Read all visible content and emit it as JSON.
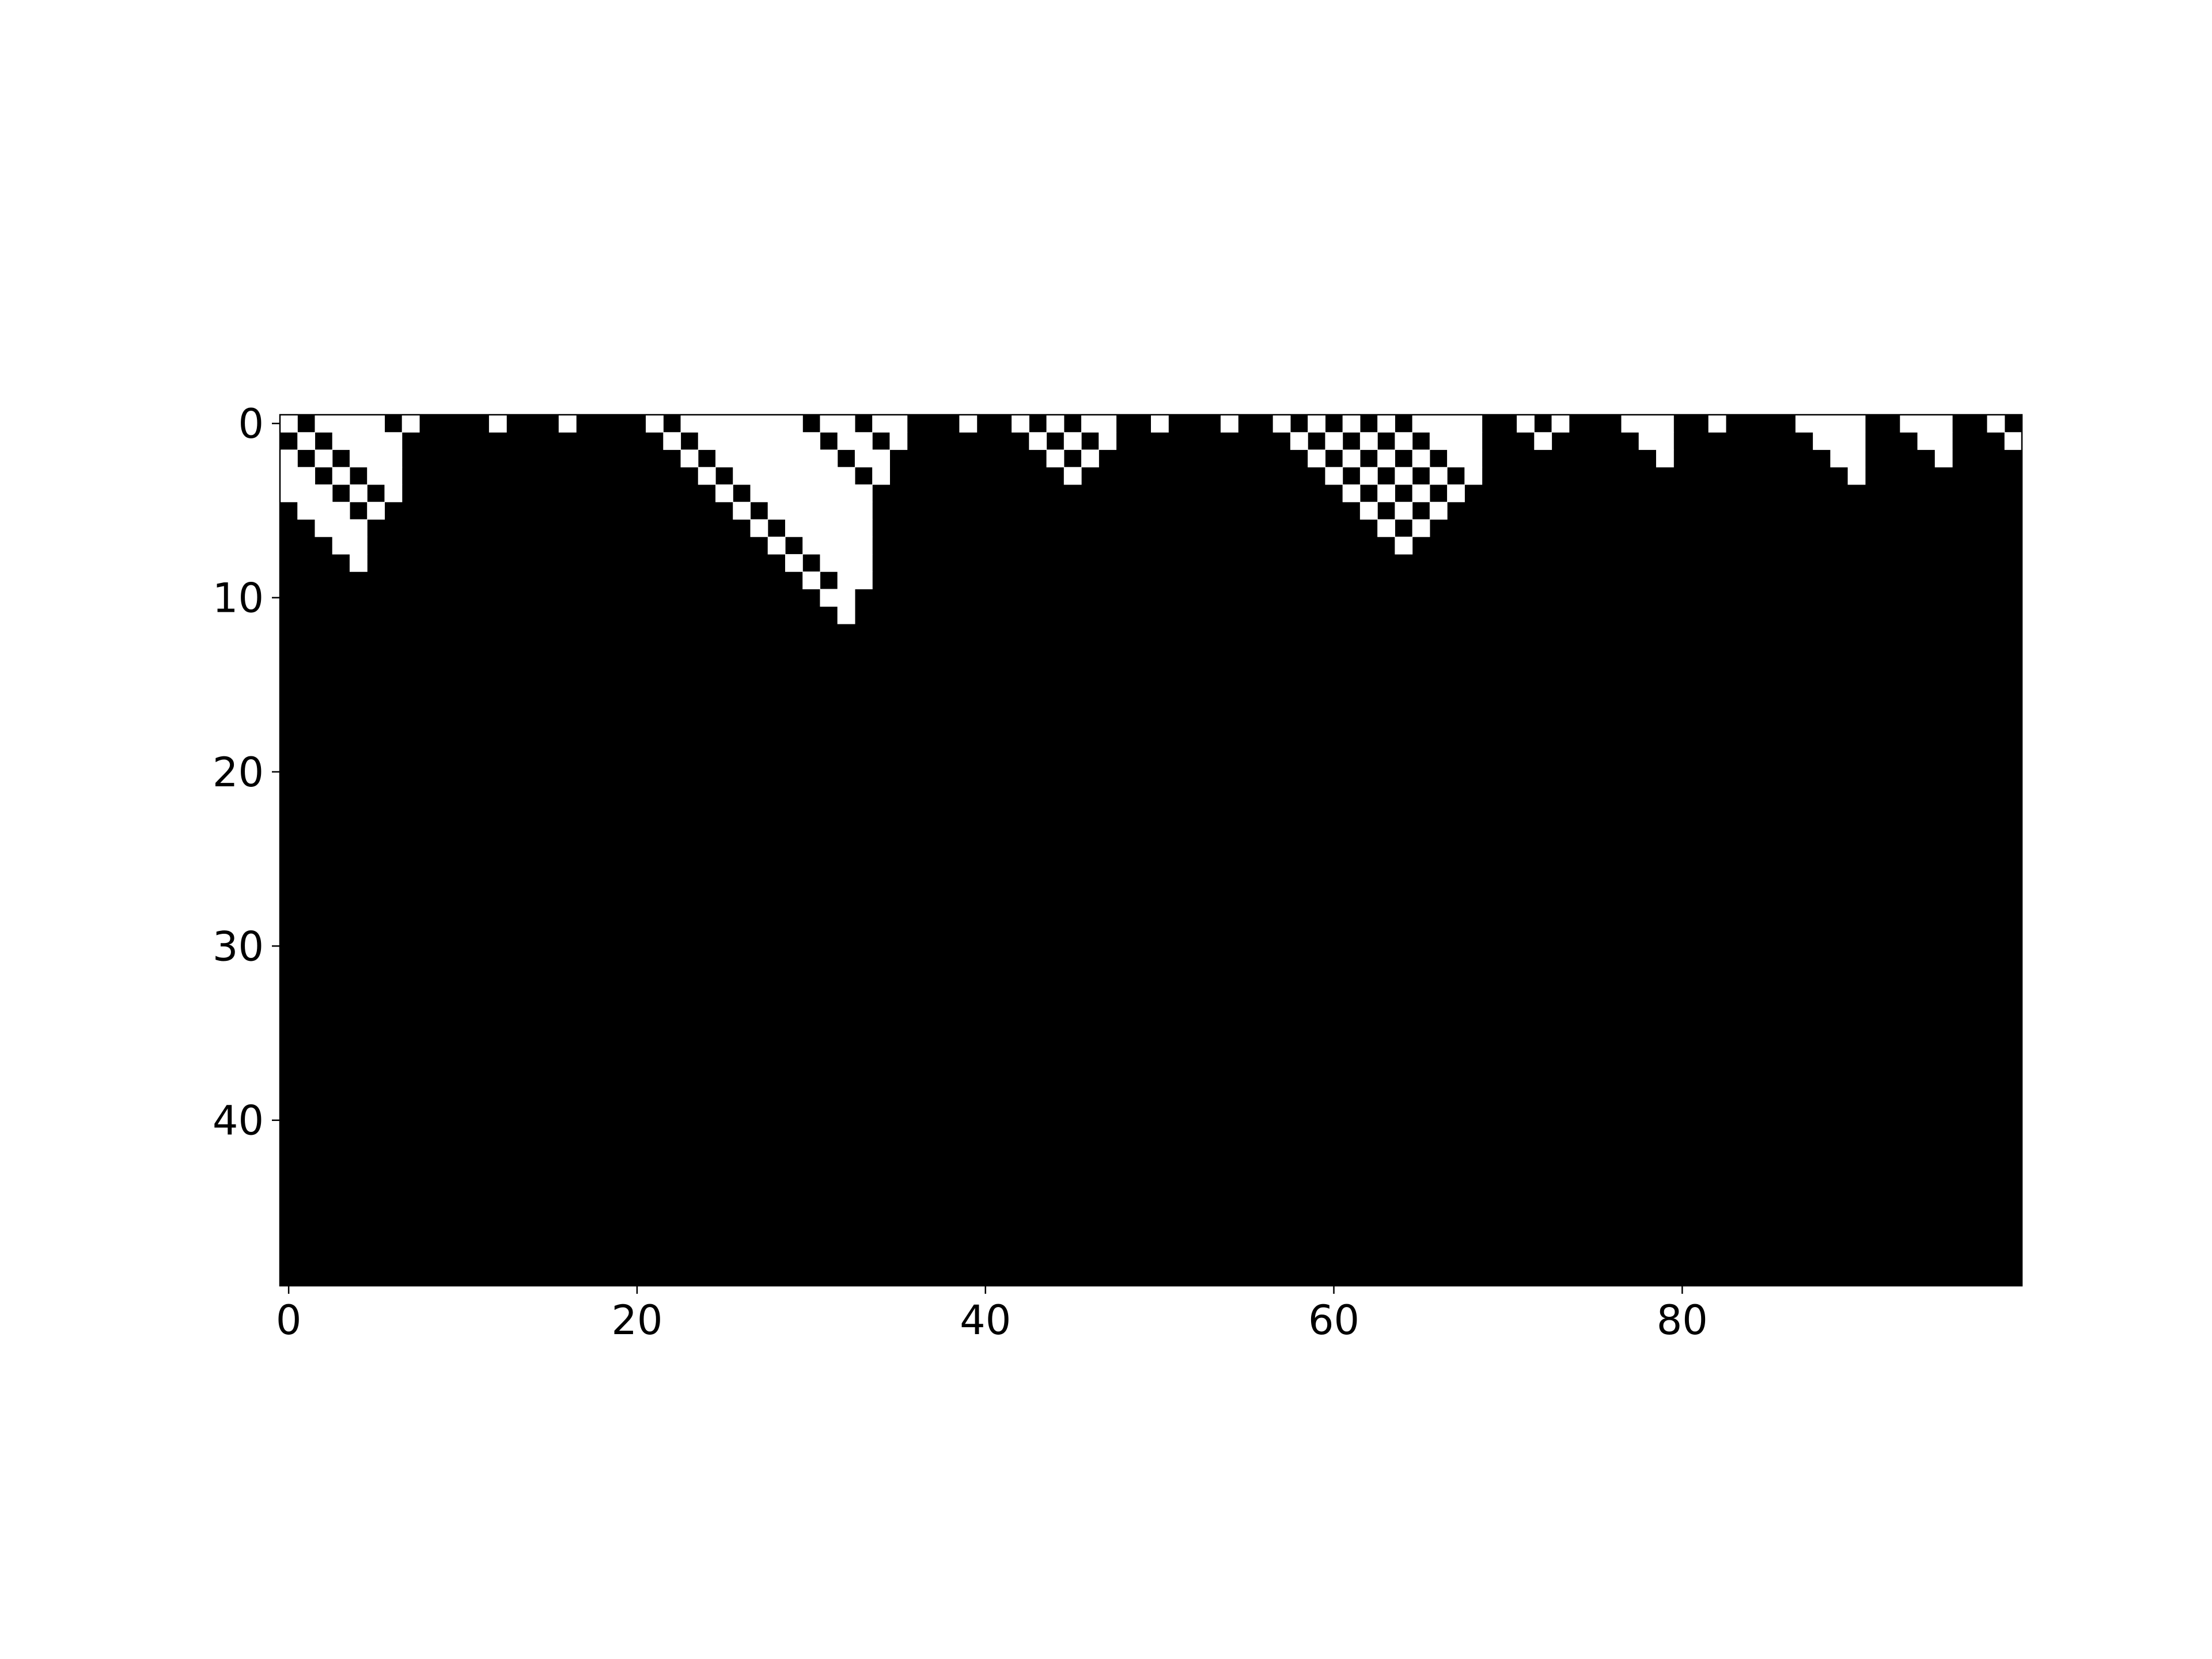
{
  "chart_data": {
    "type": "heatmap",
    "title": "",
    "xlabel": "",
    "ylabel": "",
    "colormap": "gray",
    "rows": 50,
    "cols": 100,
    "xlim": [
      -0.5,
      99.5
    ],
    "ylim": [
      49.5,
      -0.5
    ],
    "x_ticks": [
      0,
      20,
      40,
      60,
      80
    ],
    "x_tick_labels": [
      "0",
      "20",
      "40",
      "60",
      "80"
    ],
    "y_ticks": [
      0,
      10,
      20,
      30,
      40
    ],
    "y_tick_labels": [
      "0",
      "10",
      "20",
      "30",
      "40"
    ],
    "grid": false,
    "legend": "none",
    "background_value": 0,
    "white_cells": [
      [
        0,
        0
      ],
      [
        0,
        2
      ],
      [
        0,
        3
      ],
      [
        0,
        4
      ],
      [
        0,
        5
      ],
      [
        0,
        7
      ],
      [
        0,
        12
      ],
      [
        0,
        16
      ],
      [
        0,
        21
      ],
      [
        0,
        23
      ],
      [
        0,
        24
      ],
      [
        0,
        25
      ],
      [
        0,
        26
      ],
      [
        0,
        27
      ],
      [
        0,
        28
      ],
      [
        0,
        29
      ],
      [
        0,
        31
      ],
      [
        0,
        32
      ],
      [
        0,
        34
      ],
      [
        0,
        35
      ],
      [
        0,
        39
      ],
      [
        0,
        42
      ],
      [
        0,
        44
      ],
      [
        0,
        46
      ],
      [
        0,
        47
      ],
      [
        0,
        50
      ],
      [
        0,
        54
      ],
      [
        0,
        57
      ],
      [
        0,
        59
      ],
      [
        0,
        61
      ],
      [
        0,
        63
      ],
      [
        0,
        65
      ],
      [
        0,
        66
      ],
      [
        0,
        67
      ],
      [
        0,
        68
      ],
      [
        0,
        71
      ],
      [
        0,
        73
      ],
      [
        0,
        77
      ],
      [
        0,
        78
      ],
      [
        0,
        79
      ],
      [
        0,
        82
      ],
      [
        0,
        87
      ],
      [
        0,
        88
      ],
      [
        0,
        89
      ],
      [
        0,
        90
      ],
      [
        0,
        93
      ],
      [
        0,
        94
      ],
      [
        0,
        95
      ],
      [
        0,
        98
      ],
      [
        1,
        1
      ],
      [
        1,
        3
      ],
      [
        1,
        4
      ],
      [
        1,
        5
      ],
      [
        1,
        6
      ],
      [
        1,
        22
      ],
      [
        1,
        24
      ],
      [
        1,
        25
      ],
      [
        1,
        26
      ],
      [
        1,
        27
      ],
      [
        1,
        28
      ],
      [
        1,
        29
      ],
      [
        1,
        30
      ],
      [
        1,
        32
      ],
      [
        1,
        33
      ],
      [
        1,
        35
      ],
      [
        1,
        43
      ],
      [
        1,
        45
      ],
      [
        1,
        47
      ],
      [
        1,
        58
      ],
      [
        1,
        60
      ],
      [
        1,
        62
      ],
      [
        1,
        64
      ],
      [
        1,
        66
      ],
      [
        1,
        67
      ],
      [
        1,
        68
      ],
      [
        1,
        72
      ],
      [
        1,
        78
      ],
      [
        1,
        79
      ],
      [
        1,
        88
      ],
      [
        1,
        89
      ],
      [
        1,
        90
      ],
      [
        1,
        94
      ],
      [
        1,
        95
      ],
      [
        1,
        99
      ],
      [
        2,
        0
      ],
      [
        2,
        2
      ],
      [
        2,
        4
      ],
      [
        2,
        5
      ],
      [
        2,
        6
      ],
      [
        2,
        23
      ],
      [
        2,
        25
      ],
      [
        2,
        26
      ],
      [
        2,
        27
      ],
      [
        2,
        28
      ],
      [
        2,
        29
      ],
      [
        2,
        30
      ],
      [
        2,
        31
      ],
      [
        2,
        33
      ],
      [
        2,
        34
      ],
      [
        2,
        44
      ],
      [
        2,
        46
      ],
      [
        2,
        59
      ],
      [
        2,
        61
      ],
      [
        2,
        63
      ],
      [
        2,
        65
      ],
      [
        2,
        67
      ],
      [
        2,
        68
      ],
      [
        2,
        79
      ],
      [
        2,
        89
      ],
      [
        2,
        90
      ],
      [
        2,
        95
      ],
      [
        3,
        0
      ],
      [
        3,
        1
      ],
      [
        3,
        3
      ],
      [
        3,
        5
      ],
      [
        3,
        6
      ],
      [
        3,
        24
      ],
      [
        3,
        26
      ],
      [
        3,
        27
      ],
      [
        3,
        28
      ],
      [
        3,
        29
      ],
      [
        3,
        30
      ],
      [
        3,
        31
      ],
      [
        3,
        32
      ],
      [
        3,
        34
      ],
      [
        3,
        45
      ],
      [
        3,
        60
      ],
      [
        3,
        62
      ],
      [
        3,
        64
      ],
      [
        3,
        66
      ],
      [
        3,
        68
      ],
      [
        3,
        90
      ],
      [
        4,
        0
      ],
      [
        4,
        1
      ],
      [
        4,
        2
      ],
      [
        4,
        4
      ],
      [
        4,
        6
      ],
      [
        4,
        25
      ],
      [
        4,
        27
      ],
      [
        4,
        28
      ],
      [
        4,
        29
      ],
      [
        4,
        30
      ],
      [
        4,
        31
      ],
      [
        4,
        32
      ],
      [
        4,
        33
      ],
      [
        4,
        61
      ],
      [
        4,
        63
      ],
      [
        4,
        65
      ],
      [
        4,
        67
      ],
      [
        5,
        1
      ],
      [
        5,
        2
      ],
      [
        5,
        3
      ],
      [
        5,
        5
      ],
      [
        5,
        26
      ],
      [
        5,
        28
      ],
      [
        5,
        29
      ],
      [
        5,
        30
      ],
      [
        5,
        31
      ],
      [
        5,
        32
      ],
      [
        5,
        33
      ],
      [
        5,
        62
      ],
      [
        5,
        64
      ],
      [
        5,
        66
      ],
      [
        6,
        2
      ],
      [
        6,
        3
      ],
      [
        6,
        4
      ],
      [
        6,
        27
      ],
      [
        6,
        29
      ],
      [
        6,
        30
      ],
      [
        6,
        31
      ],
      [
        6,
        32
      ],
      [
        6,
        33
      ],
      [
        6,
        63
      ],
      [
        6,
        65
      ],
      [
        7,
        3
      ],
      [
        7,
        4
      ],
      [
        7,
        28
      ],
      [
        7,
        30
      ],
      [
        7,
        31
      ],
      [
        7,
        32
      ],
      [
        7,
        33
      ],
      [
        7,
        64
      ],
      [
        8,
        4
      ],
      [
        8,
        29
      ],
      [
        8,
        31
      ],
      [
        8,
        32
      ],
      [
        8,
        33
      ],
      [
        9,
        30
      ],
      [
        9,
        32
      ],
      [
        9,
        33
      ],
      [
        10,
        31
      ],
      [
        10,
        32
      ],
      [
        11,
        32
      ]
    ]
  }
}
